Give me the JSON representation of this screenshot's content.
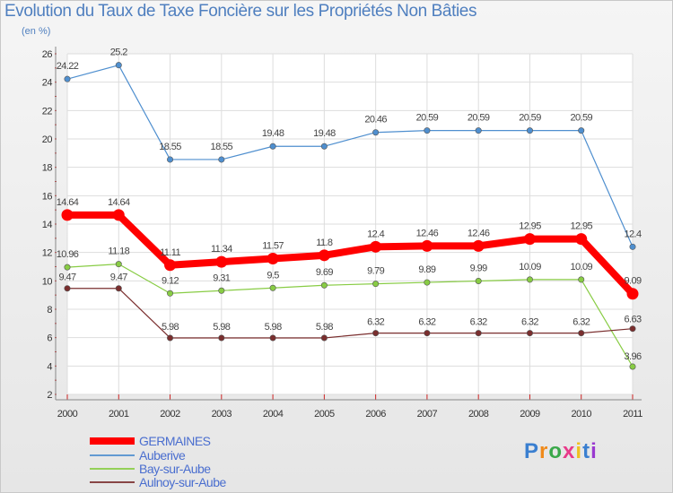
{
  "chart_data": {
    "type": "line",
    "title": "Evolution du Taux de Taxe Foncière sur les Propriétés Non Bâties",
    "ylabel": "(en %)",
    "xlabel": "",
    "categories": [
      "2000",
      "2001",
      "2002",
      "2003",
      "2004",
      "2005",
      "2006",
      "2007",
      "2008",
      "2009",
      "2010",
      "2011"
    ],
    "ylim": [
      2,
      26
    ],
    "yticks": [
      2,
      4,
      6,
      8,
      10,
      12,
      14,
      16,
      18,
      20,
      22,
      24,
      26
    ],
    "grid": true,
    "legend_position": "bottom-left",
    "series": [
      {
        "name": "GERMAINES",
        "color": "#ff0000",
        "values": [
          14.64,
          14.64,
          11.11,
          11.34,
          11.57,
          11.8,
          12.4,
          12.46,
          12.46,
          12.95,
          12.95,
          9.09
        ],
        "labels": [
          "14.64",
          "14.64",
          "11.11",
          "11.34",
          "11.57",
          "11.8",
          "12.4",
          "12.46",
          "12.46",
          "12.95",
          "12.95",
          "9.09"
        ]
      },
      {
        "name": "Auberive",
        "color": "#4f8fcf",
        "values": [
          24.22,
          25.2,
          18.55,
          18.55,
          19.48,
          19.48,
          20.46,
          20.59,
          20.59,
          20.59,
          20.59,
          12.4
        ],
        "labels": [
          "24.22",
          "25.2",
          "18.55",
          "18.55",
          "19.48",
          "19.48",
          "20.46",
          "20.59",
          "20.59",
          "20.59",
          "20.59",
          "12.4"
        ]
      },
      {
        "name": "Bay-sur-Aube",
        "color": "#88cc44",
        "values": [
          10.96,
          11.18,
          9.12,
          9.31,
          9.5,
          9.69,
          9.79,
          9.89,
          9.99,
          10.09,
          10.09,
          3.96
        ],
        "labels": [
          "10.96",
          "11.18",
          "9.12",
          "9.31",
          "9.5",
          "9.69",
          "9.79",
          "9.89",
          "9.99",
          "10.09",
          "10.09",
          "3.96"
        ]
      },
      {
        "name": "Aulnoy-sur-Aube",
        "color": "#7a2e2e",
        "values": [
          9.47,
          9.47,
          5.98,
          5.98,
          5.98,
          5.98,
          6.32,
          6.32,
          6.32,
          6.32,
          6.32,
          6.63
        ],
        "labels": [
          "9.47",
          "9.47",
          "5.98",
          "5.98",
          "5.98",
          "5.98",
          "6.32",
          "6.32",
          "6.32",
          "6.32",
          "6.32",
          "6.63"
        ]
      }
    ]
  },
  "logo": {
    "text": "Proxiti",
    "letter_colors": [
      "#3a7fd0",
      "#f08a1a",
      "#3aa84a",
      "#e83a8a",
      "#f0c020",
      "#3a7fd0",
      "#9a3ad0"
    ]
  }
}
